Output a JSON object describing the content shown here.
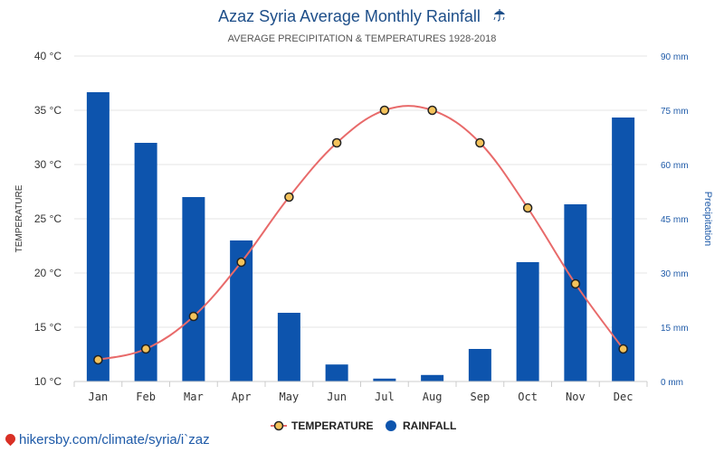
{
  "page": {
    "title": "Azaz Syria Average Monthly Rainfall",
    "title_icon": "umbrella-rain-icon",
    "subtitle": "AVERAGE PRECIPITATION & TEMPERATURES 1928-2018",
    "footer_link": "hikersby.com/climate/syria/i`zaz",
    "footer_icon": "location-pin-icon"
  },
  "legend": {
    "temperature_label": "TEMPERATURE",
    "rainfall_label": "RAINFALL"
  },
  "colors": {
    "bar": "#0d54ad",
    "line": "#e86a6a",
    "marker_fill": "#f4c35b",
    "marker_stroke": "#222222",
    "title": "#1d4e89",
    "right_axis": "#1e5aa8"
  },
  "chart_data": {
    "type": "bar",
    "categories": [
      "Jan",
      "Feb",
      "Mar",
      "Apr",
      "May",
      "Jun",
      "Jul",
      "Aug",
      "Sep",
      "Oct",
      "Nov",
      "Dec"
    ],
    "series": [
      {
        "name": "RAINFALL",
        "type": "bar",
        "axis": "right",
        "values": [
          80,
          66,
          51,
          39,
          19,
          4.7,
          0.8,
          1.8,
          9,
          33,
          49,
          73
        ]
      },
      {
        "name": "TEMPERATURE",
        "type": "line",
        "axis": "left",
        "values": [
          12,
          13,
          16,
          21,
          27,
          32,
          35,
          35,
          32,
          26,
          19,
          13
        ]
      }
    ],
    "y_left": {
      "label": "TEMPERATURE",
      "range": [
        10,
        40
      ],
      "ticks": [
        10,
        15,
        20,
        25,
        30,
        35,
        40
      ],
      "tick_labels": [
        "10 °C",
        "15 °C",
        "20 °C",
        "25 °C",
        "30 °C",
        "35 °C",
        "40 °C"
      ]
    },
    "y_right": {
      "label": "Precipitation",
      "range": [
        0,
        90
      ],
      "ticks": [
        0,
        15,
        30,
        45,
        60,
        75,
        90
      ],
      "tick_labels": [
        "0 mm",
        "15 mm",
        "30 mm",
        "45 mm",
        "60 mm",
        "75 mm",
        "90 mm"
      ]
    },
    "grid": true,
    "legend_position": "bottom-center"
  }
}
